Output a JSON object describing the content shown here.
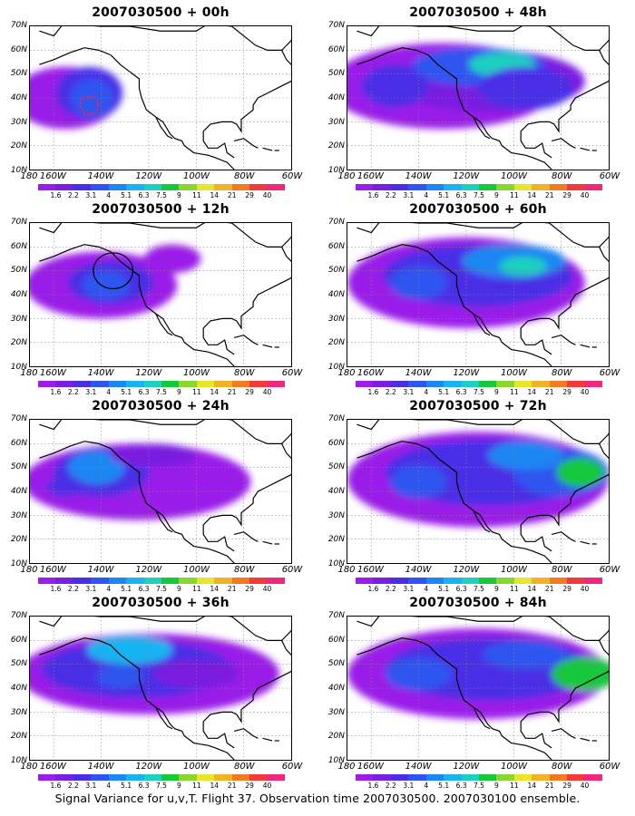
{
  "chart_data": [
    {
      "type": "filled-contour-map",
      "title": "2007030500 + 00h",
      "lead_hours": 0,
      "annotation": "red dotted circle near 145W 38N"
    },
    {
      "type": "filled-contour-map",
      "title": "2007030500 + 48h",
      "lead_hours": 48
    },
    {
      "type": "filled-contour-map",
      "title": "2007030500 + 12h",
      "lead_hours": 12,
      "annotation": "black circle near 135W 50N"
    },
    {
      "type": "filled-contour-map",
      "title": "2007030500 + 60h",
      "lead_hours": 60
    },
    {
      "type": "filled-contour-map",
      "title": "2007030500 + 24h",
      "lead_hours": 24
    },
    {
      "type": "filled-contour-map",
      "title": "2007030500 + 72h",
      "lead_hours": 72
    },
    {
      "type": "filled-contour-map",
      "title": "2007030500 + 36h",
      "lead_hours": 36
    },
    {
      "type": "filled-contour-map",
      "title": "2007030500 + 84h",
      "lead_hours": 84
    }
  ],
  "axes": {
    "y_ticks": [
      "70N",
      "60N",
      "50N",
      "40N",
      "30N",
      "20N",
      "10N"
    ],
    "y_range": [
      10,
      70
    ],
    "x_ticks": [
      "180",
      "160W",
      "140W",
      "120W",
      "100W",
      "80W",
      "60W"
    ],
    "x_range_deg_west": [
      170,
      60
    ],
    "grid": "dotted"
  },
  "colorbar": {
    "labels": [
      "1.6",
      "2.2",
      "3.1",
      "4",
      "5.1",
      "6.3",
      "7.5",
      "9",
      "11",
      "14",
      "21",
      "29",
      "40"
    ],
    "colors": [
      "#9a1ee8",
      "#7a1fe0",
      "#4a2ee6",
      "#2f55f0",
      "#1c86f2",
      "#19b3f2",
      "#1ed0c0",
      "#16c83a",
      "#8ad630",
      "#e6e62a",
      "#f2b228",
      "#f27a22",
      "#f23a3a",
      "#f0287c"
    ]
  },
  "footer": "Signal Variance for u,v,T. Flight 37. Observation time 2007030500. 2007030100 ensemble."
}
